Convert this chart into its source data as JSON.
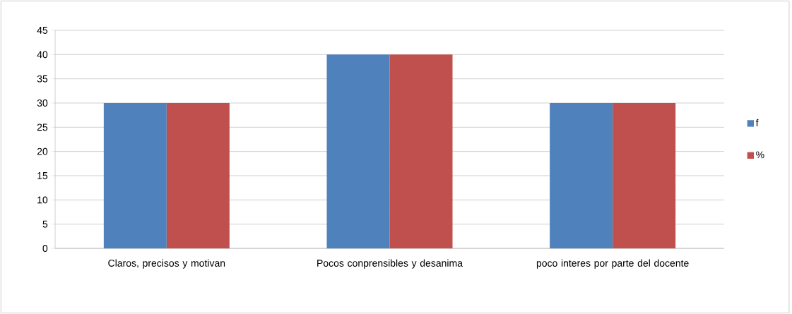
{
  "chart_data": {
    "type": "bar",
    "categories": [
      "Claros, precisos y motivan",
      "Pocos conprensibles y desanima",
      "poco interes por parte del docente"
    ],
    "series": [
      {
        "name": "f",
        "color": "#4f81bd",
        "values": [
          30,
          40,
          30
        ]
      },
      {
        "name": "%",
        "color": "#c0504d",
        "values": [
          30,
          40,
          30
        ]
      }
    ],
    "ylim": [
      0,
      45
    ],
    "yticks": [
      0,
      5,
      10,
      15,
      20,
      25,
      30,
      35,
      40,
      45
    ],
    "grid": "y",
    "legend": "right"
  }
}
